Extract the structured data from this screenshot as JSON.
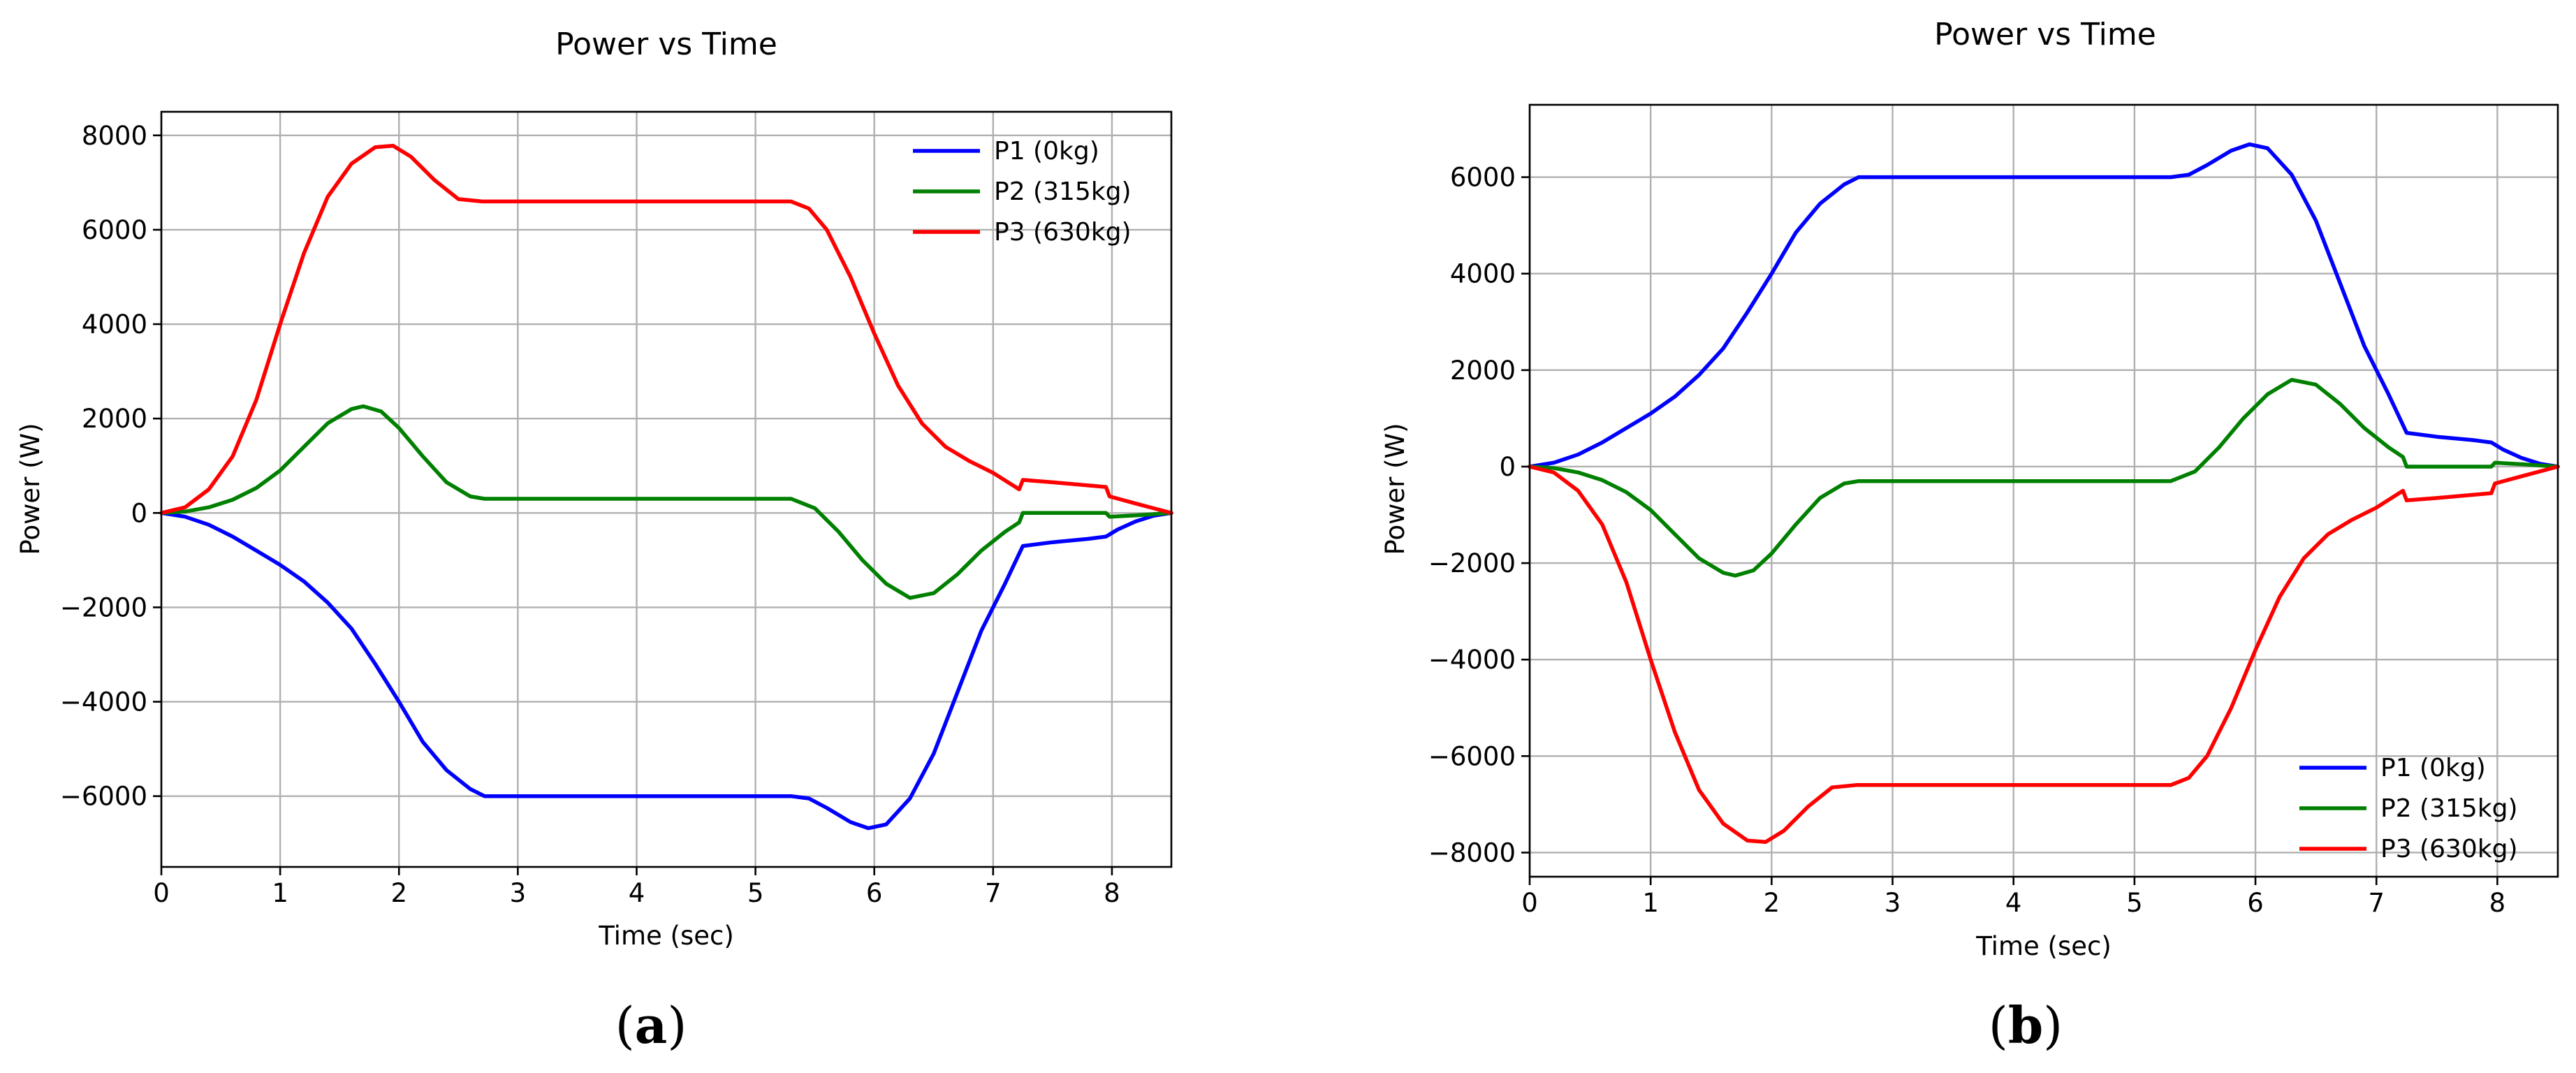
{
  "chart_data": [
    {
      "type": "line",
      "title": "Power vs Time",
      "xlabel": "Time (sec)",
      "ylabel": "Power (W)",
      "panel_label": "a",
      "xlim": [
        0,
        8.5
      ],
      "ylim": [
        -7500,
        8500
      ],
      "xticks": [
        0,
        1,
        2,
        3,
        4,
        5,
        6,
        7,
        8
      ],
      "yticks": [
        -6000,
        -4000,
        -2000,
        0,
        2000,
        4000,
        6000,
        8000
      ],
      "ytick_labels": [
        "−6000",
        "−4000",
        "−2000",
        "0",
        "2000",
        "4000",
        "6000",
        "8000"
      ],
      "grid": true,
      "legend_position": "top-right",
      "series": [
        {
          "name": "P1 (0kg)",
          "color": "#0000ff",
          "x": [
            0,
            0.2,
            0.4,
            0.6,
            0.8,
            1.0,
            1.2,
            1.4,
            1.6,
            1.8,
            2.0,
            2.2,
            2.4,
            2.6,
            2.72,
            2.75,
            3.0,
            4.0,
            5.0,
            5.3,
            5.45,
            5.6,
            5.8,
            5.95,
            6.1,
            6.3,
            6.5,
            6.7,
            6.9,
            7.1,
            7.25,
            7.5,
            7.8,
            7.95,
            8.05,
            8.2,
            8.35,
            8.5
          ],
          "y": [
            0,
            -80,
            -250,
            -500,
            -800,
            -1100,
            -1450,
            -1900,
            -2450,
            -3200,
            -4000,
            -4850,
            -5450,
            -5850,
            -6000,
            -6000,
            -6000,
            -6000,
            -6000,
            -6000,
            -6050,
            -6250,
            -6550,
            -6680,
            -6600,
            -6050,
            -5100,
            -3800,
            -2500,
            -1500,
            -700,
            -620,
            -550,
            -500,
            -350,
            -180,
            -60,
            0
          ]
        },
        {
          "name": "P2 (315kg)",
          "color": "#008000",
          "x": [
            0,
            0.2,
            0.4,
            0.6,
            0.8,
            1.0,
            1.2,
            1.4,
            1.6,
            1.7,
            1.85,
            2.0,
            2.2,
            2.4,
            2.6,
            2.72,
            2.75,
            3.0,
            4.0,
            5.0,
            5.3,
            5.5,
            5.7,
            5.9,
            6.1,
            6.3,
            6.5,
            6.7,
            6.9,
            7.1,
            7.22,
            7.25,
            7.5,
            7.95,
            7.98,
            8.2,
            8.5
          ],
          "y": [
            0,
            30,
            120,
            280,
            530,
            900,
            1400,
            1900,
            2200,
            2260,
            2150,
            1800,
            1200,
            650,
            350,
            300,
            300,
            300,
            300,
            300,
            300,
            100,
            -400,
            -1000,
            -1500,
            -1800,
            -1700,
            -1300,
            -800,
            -400,
            -200,
            0,
            0,
            0,
            -80,
            -50,
            0
          ]
        },
        {
          "name": "P3 (630kg)",
          "color": "#ff0000",
          "x": [
            0,
            0.2,
            0.4,
            0.6,
            0.8,
            1.0,
            1.2,
            1.4,
            1.6,
            1.8,
            1.95,
            2.1,
            2.3,
            2.5,
            2.7,
            2.75,
            3.0,
            4.0,
            5.0,
            5.3,
            5.45,
            5.6,
            5.8,
            6.0,
            6.2,
            6.4,
            6.6,
            6.8,
            7.0,
            7.22,
            7.25,
            7.5,
            7.95,
            7.98,
            8.2,
            8.5
          ],
          "y": [
            0,
            120,
            500,
            1200,
            2400,
            4000,
            5500,
            6700,
            7400,
            7750,
            7780,
            7550,
            7050,
            6650,
            6600,
            6600,
            6600,
            6600,
            6600,
            6600,
            6450,
            6000,
            5000,
            3800,
            2700,
            1900,
            1400,
            1100,
            850,
            500,
            700,
            650,
            550,
            350,
            200,
            0
          ]
        }
      ]
    },
    {
      "type": "line",
      "title": "Power vs Time",
      "xlabel": "Time (sec)",
      "ylabel": "Power (W)",
      "panel_label": "b",
      "xlim": [
        0,
        8.5
      ],
      "ylim": [
        -8500,
        7500
      ],
      "xticks": [
        0,
        1,
        2,
        3,
        4,
        5,
        6,
        7,
        8
      ],
      "yticks": [
        -8000,
        -6000,
        -4000,
        -2000,
        0,
        2000,
        4000,
        6000
      ],
      "ytick_labels": [
        "−8000",
        "−6000",
        "−4000",
        "−2000",
        "0",
        "2000",
        "4000",
        "6000"
      ],
      "grid": true,
      "legend_position": "bottom-right",
      "series": [
        {
          "name": "P1 (0kg)",
          "color": "#0000ff",
          "x": [
            0,
            0.2,
            0.4,
            0.6,
            0.8,
            1.0,
            1.2,
            1.4,
            1.6,
            1.8,
            2.0,
            2.2,
            2.4,
            2.6,
            2.72,
            2.75,
            3.0,
            4.0,
            5.0,
            5.3,
            5.45,
            5.6,
            5.8,
            5.95,
            6.1,
            6.3,
            6.5,
            6.7,
            6.9,
            7.1,
            7.25,
            7.5,
            7.8,
            7.95,
            8.05,
            8.2,
            8.35,
            8.5
          ],
          "y": [
            0,
            80,
            250,
            500,
            800,
            1100,
            1450,
            1900,
            2450,
            3200,
            4000,
            4850,
            5450,
            5850,
            6000,
            6000,
            6000,
            6000,
            6000,
            6000,
            6050,
            6250,
            6550,
            6680,
            6600,
            6050,
            5100,
            3800,
            2500,
            1500,
            700,
            620,
            550,
            500,
            350,
            180,
            60,
            0
          ]
        },
        {
          "name": "P2 (315kg)",
          "color": "#008000",
          "x": [
            0,
            0.2,
            0.4,
            0.6,
            0.8,
            1.0,
            1.2,
            1.4,
            1.6,
            1.7,
            1.85,
            2.0,
            2.2,
            2.4,
            2.6,
            2.72,
            2.75,
            3.0,
            4.0,
            5.0,
            5.3,
            5.5,
            5.7,
            5.9,
            6.1,
            6.3,
            6.5,
            6.7,
            6.9,
            7.1,
            7.22,
            7.25,
            7.5,
            7.95,
            7.98,
            8.2,
            8.5
          ],
          "y": [
            0,
            -30,
            -120,
            -280,
            -530,
            -900,
            -1400,
            -1900,
            -2200,
            -2260,
            -2150,
            -1800,
            -1200,
            -650,
            -350,
            -300,
            -300,
            -300,
            -300,
            -300,
            -300,
            -100,
            400,
            1000,
            1500,
            1800,
            1700,
            1300,
            800,
            400,
            200,
            0,
            0,
            0,
            80,
            50,
            0
          ]
        },
        {
          "name": "P3 (630kg)",
          "color": "#ff0000",
          "x": [
            0,
            0.2,
            0.4,
            0.6,
            0.8,
            1.0,
            1.2,
            1.4,
            1.6,
            1.8,
            1.95,
            2.1,
            2.3,
            2.5,
            2.7,
            2.75,
            3.0,
            4.0,
            5.0,
            5.3,
            5.45,
            5.6,
            5.8,
            6.0,
            6.2,
            6.4,
            6.6,
            6.8,
            7.0,
            7.22,
            7.25,
            7.5,
            7.95,
            7.98,
            8.2,
            8.5
          ],
          "y": [
            0,
            -120,
            -500,
            -1200,
            -2400,
            -4000,
            -5500,
            -6700,
            -7400,
            -7750,
            -7780,
            -7550,
            -7050,
            -6650,
            -6600,
            -6600,
            -6600,
            -6600,
            -6600,
            -6600,
            -6450,
            -6000,
            -5000,
            -3800,
            -2700,
            -1900,
            -1400,
            -1100,
            -850,
            -500,
            -700,
            -650,
            -550,
            -350,
            -200,
            0
          ]
        }
      ]
    }
  ]
}
